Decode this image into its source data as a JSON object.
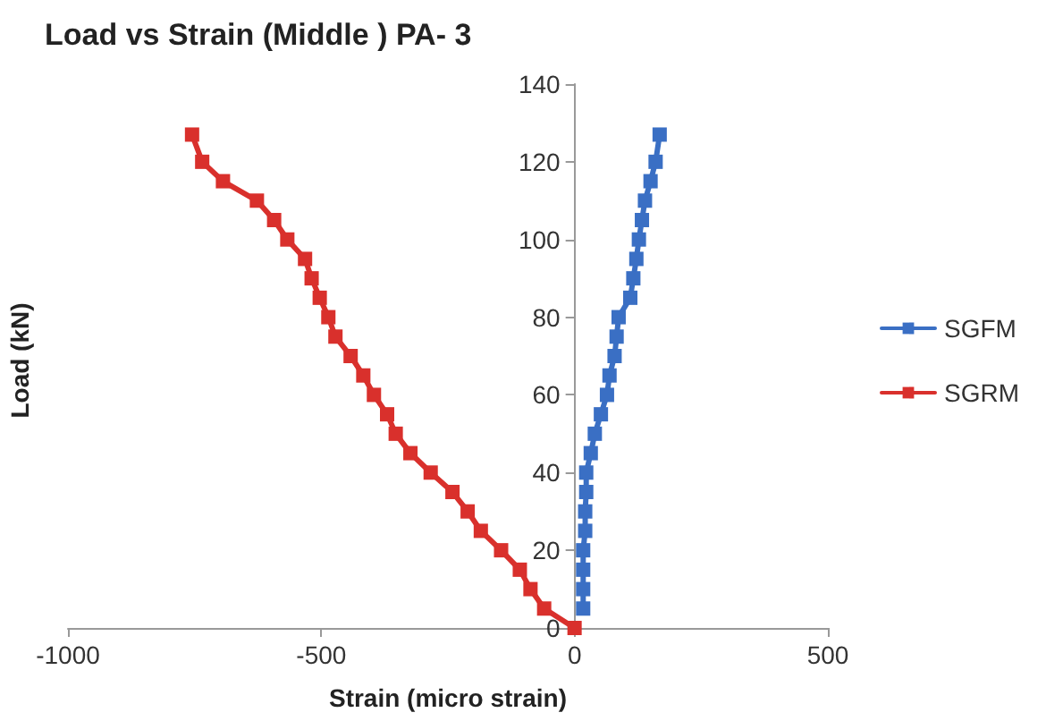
{
  "chart_data": {
    "type": "line",
    "title": "Load vs Strain (Middle ) PA- 3",
    "xlabel": "Strain (micro strain)",
    "ylabel": "Load (kN)",
    "xlim": [
      -1000,
      500
    ],
    "xticks": [
      -1000,
      -500,
      0,
      500
    ],
    "ylim": [
      0,
      140
    ],
    "yticks": [
      0,
      20,
      40,
      60,
      80,
      100,
      120,
      140
    ],
    "grid": false,
    "legend": "right",
    "marker": "square",
    "line_style": "solid",
    "series": [
      {
        "name": "SGFM",
        "color": "#3a6fc4",
        "x": [
          17,
          17,
          17,
          17,
          21,
          21,
          23,
          23,
          32,
          40,
          52,
          64,
          69,
          79,
          83,
          87,
          110,
          116,
          122,
          127,
          133,
          139,
          150,
          160,
          168
        ],
        "values": [
          5,
          10,
          15,
          20,
          25,
          30,
          35,
          40,
          45,
          50,
          55,
          60,
          65,
          70,
          75,
          80,
          85,
          90,
          95,
          100,
          105,
          110,
          115,
          120,
          127
        ]
      },
      {
        "name": "SGRM",
        "color": "#d9302c",
        "x": [
          0,
          -60,
          -87,
          -108,
          -145,
          -185,
          -211,
          -241,
          -284,
          -324,
          -353,
          -370,
          -396,
          -417,
          -442,
          -472,
          -486,
          -503,
          -519,
          -532,
          -567,
          -593,
          -627,
          -694,
          -735,
          -755
        ],
        "values": [
          0,
          5,
          10,
          15,
          20,
          25,
          30,
          35,
          40,
          45,
          50,
          55,
          60,
          65,
          70,
          75,
          80,
          85,
          90,
          95,
          100,
          105,
          110,
          115,
          120,
          127
        ]
      }
    ]
  }
}
